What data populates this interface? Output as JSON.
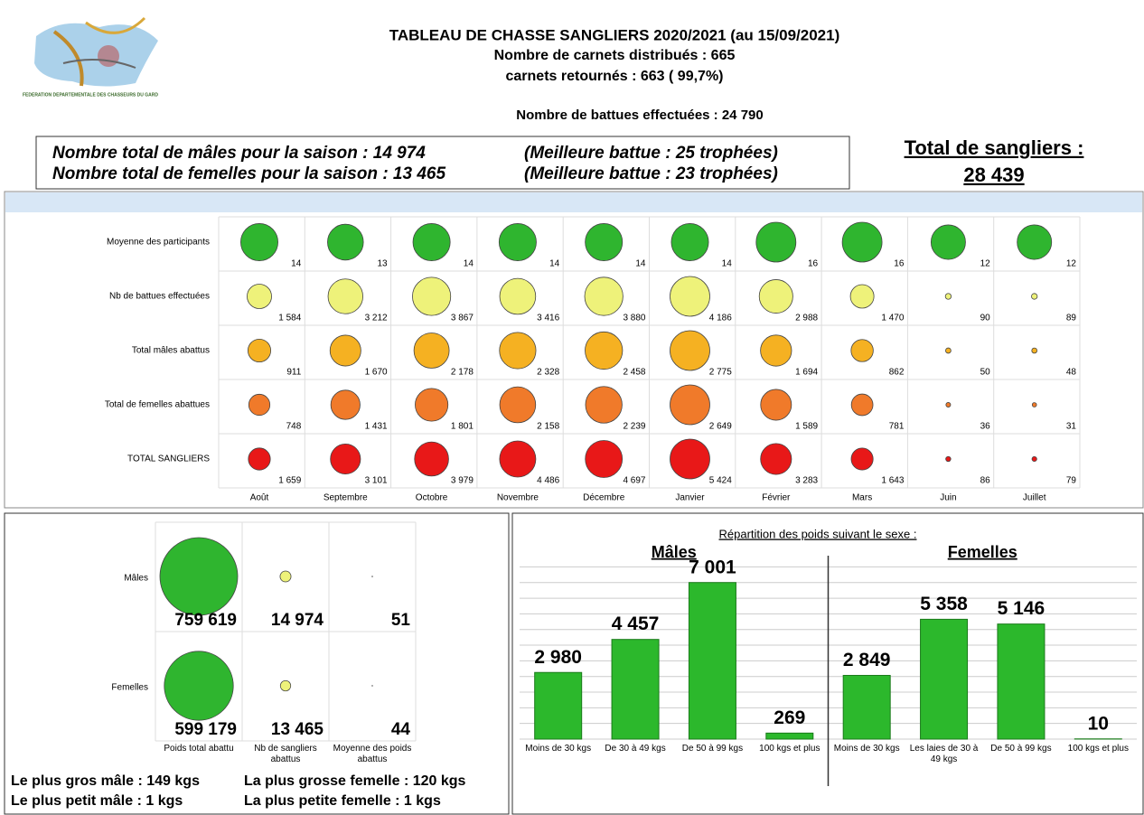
{
  "header": {
    "logo_text": "FEDERATION DEPARTEMENTALE DES CHASSEURS DU GARD",
    "title": "TABLEAU DE CHASSE SANGLIERS 2020/2021 (au 15/09/2021)",
    "line2": "Nombre de carnets distribués : 665",
    "line3": "carnets retournés : 663 ( 99,7%)",
    "line4": "Nombre de battues effectuées : 24 790"
  },
  "summary": {
    "males": "Nombre total de mâles pour la saison : 14 974",
    "females": "Nombre total de femelles pour la saison : 13 465",
    "best_males": "(Meilleure battue : 25 trophées)",
    "best_females": "(Meilleure battue : 23 trophées)",
    "total_label": "Total de sangliers :",
    "total": "28 439"
  },
  "monthly": {
    "months": [
      "Août",
      "Septembre",
      "Octobre",
      "Novembre",
      "Décembre",
      "Janvier",
      "Février",
      "Mars",
      "Juin",
      "Juillet"
    ],
    "rows": [
      {
        "label": "Moyenne des participants",
        "color": "#2fb52f",
        "values": [
          14,
          13,
          14,
          14,
          14,
          14,
          16,
          16,
          12,
          12
        ]
      },
      {
        "label": "Nb de battues effectuées",
        "color": "#eef27a",
        "values": [
          1584,
          3212,
          3867,
          3416,
          3880,
          4186,
          2988,
          1470,
          90,
          89
        ],
        "value_labels": [
          "1 584",
          "3 212",
          "3 867",
          "3 416",
          "3 880",
          "4 186",
          "2 988",
          "1 470",
          "90",
          "89"
        ]
      },
      {
        "label": "Total mâles abattus",
        "color": "#f5b122",
        "values": [
          911,
          1670,
          2178,
          2328,
          2458,
          2775,
          1694,
          862,
          50,
          48
        ],
        "value_labels": [
          "911",
          "1 670",
          "2 178",
          "2 328",
          "2 458",
          "2 775",
          "1 694",
          "862",
          "50",
          "48"
        ]
      },
      {
        "label": "Total de femelles abattues",
        "color": "#f07a2a",
        "values": [
          748,
          1431,
          1801,
          2158,
          2239,
          2649,
          1589,
          781,
          36,
          31
        ],
        "value_labels": [
          "748",
          "1 431",
          "1 801",
          "2 158",
          "2 239",
          "2 649",
          "1 589",
          "781",
          "36",
          "31"
        ]
      },
      {
        "label": "TOTAL SANGLIERS",
        "color": "#e81818",
        "values": [
          1659,
          3101,
          3979,
          4486,
          4697,
          5424,
          3283,
          1643,
          86,
          79
        ],
        "value_labels": [
          "1 659",
          "3 101",
          "3 979",
          "4 486",
          "4 697",
          "5 424",
          "3 283",
          "1 643",
          "86",
          "79"
        ]
      }
    ]
  },
  "weights": {
    "rows": [
      "Mâles",
      "Femelles"
    ],
    "columns": [
      "Poids total abattu",
      "Nb de sangliers abattus",
      "Moyenne des poids abattus"
    ],
    "column_colors": [
      "#2fb52f",
      "#eef27a",
      "#2fb52f"
    ],
    "values": [
      [
        759619,
        14974,
        51
      ],
      [
        599179,
        13465,
        44
      ]
    ],
    "value_labels": [
      [
        "759 619",
        "14 974",
        "51"
      ],
      [
        "599 179",
        "13 465",
        "44"
      ]
    ]
  },
  "records": [
    "Le plus gros mâle : 149 kgs",
    "La plus grosse femelle : 120 kgs",
    "Le plus petit mâle : 1 kgs",
    "La plus petite femelle : 1 kgs"
  ],
  "chart_data": {
    "type": "bar",
    "title": "Répartition des poids suivant le sexe :",
    "groups": [
      "Mâles",
      "Femelles"
    ],
    "categories": [
      "Moins de 30 kgs",
      "De 30 à 49 kgs",
      "De 50 à 99 kgs",
      "100 kgs et plus",
      "Moins de 30 kgs",
      "Les laies de 30 à 49 kgs",
      "De 50 à 99 kgs",
      "100 kgs et plus"
    ],
    "values": [
      2980,
      4457,
      7001,
      269,
      2849,
      5358,
      5146,
      10
    ],
    "value_labels": [
      "2 980",
      "4 457",
      "7 001",
      "269",
      "2 849",
      "5 358",
      "5 146",
      "10"
    ],
    "color": "#2cb82c",
    "ylim": [
      0,
      8000
    ],
    "yticks": [
      0,
      700,
      1400,
      2100,
      2800,
      3500,
      4200,
      4900,
      5600,
      6300,
      7000,
      7700
    ],
    "grid": true
  }
}
